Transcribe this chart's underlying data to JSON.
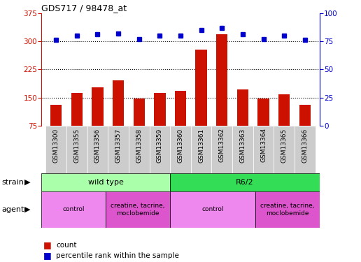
{
  "title": "GDS717 / 98478_at",
  "samples": [
    "GSM13300",
    "GSM13355",
    "GSM13356",
    "GSM13357",
    "GSM13358",
    "GSM13359",
    "GSM13360",
    "GSM13361",
    "GSM13362",
    "GSM13363",
    "GSM13364",
    "GSM13365",
    "GSM13366"
  ],
  "counts": [
    130,
    162,
    178,
    195,
    148,
    162,
    168,
    278,
    318,
    172,
    148,
    158,
    130
  ],
  "percentile_ranks": [
    76,
    80,
    81,
    82,
    77,
    80,
    80,
    85,
    87,
    81,
    77,
    80,
    76
  ],
  "ylim_left": [
    75,
    375
  ],
  "ylim_right": [
    0,
    100
  ],
  "yticks_left": [
    75,
    150,
    225,
    300,
    375
  ],
  "yticks_right": [
    0,
    25,
    50,
    75,
    100
  ],
  "hlines": [
    150,
    225,
    300
  ],
  "bar_color": "#cc1100",
  "dot_color": "#0000cc",
  "strain_groups": [
    {
      "label": "wild type",
      "start": 0,
      "end": 6,
      "color": "#aaffaa"
    },
    {
      "label": "R6/2",
      "start": 6,
      "end": 13,
      "color": "#33dd55"
    }
  ],
  "agent_groups": [
    {
      "label": "control",
      "start": 0,
      "end": 3,
      "color": "#ee88ee"
    },
    {
      "label": "creatine, tacrine,\nmoclobemide",
      "start": 3,
      "end": 6,
      "color": "#dd55cc"
    },
    {
      "label": "control",
      "start": 6,
      "end": 10,
      "color": "#ee88ee"
    },
    {
      "label": "creatine, tacrine,\nmoclobemide",
      "start": 10,
      "end": 13,
      "color": "#dd55cc"
    }
  ],
  "label_bg_color": "#cccccc",
  "legend_count_color": "#cc1100",
  "legend_pct_color": "#0000cc"
}
